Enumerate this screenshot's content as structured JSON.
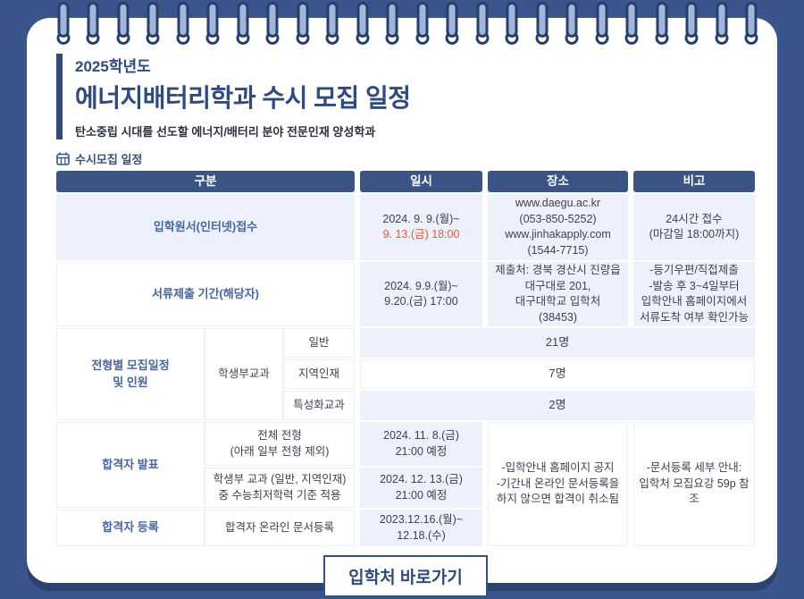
{
  "colors": {
    "page_bg": "#3a548c",
    "card_shadow": "#2b4270",
    "table_header_bg": "#3a5486",
    "row_tint": "#edf1fb",
    "navy_text": "#2e4a80",
    "blue_label": "#4466a8",
    "red_text": "#f6552f"
  },
  "decoration": {
    "binding_ring_count": 24
  },
  "header": {
    "year_badge": "2025학년도",
    "title": "에너지배터리학과 수시 모집 일정",
    "subtitle": "탄소중립 시대를 선도할 에너지/배터리 분야 전문인재 양성학과"
  },
  "section": {
    "label": "수시모집 일정"
  },
  "table": {
    "headers": [
      "구분",
      "일시",
      "장소",
      "비고"
    ],
    "r1": {
      "label": "입학원서(인터넷)접수",
      "time1": "2024. 9. 9.(월)~",
      "time2": "9. 13.(금) 18:00",
      "place": [
        "www.daegu.ac.kr",
        "(053-850-5252)",
        "www.jinhakapply.com",
        "(1544-7715)"
      ],
      "note": [
        "24시간 접수",
        "(마감일 18:00까지)"
      ]
    },
    "r2": {
      "label": "서류제출 기간(해당자)",
      "time": [
        "2024. 9.9.(월)~",
        "9.20.(금) 17:00"
      ],
      "place": [
        "제출처: 경북 경산시 진량읍",
        "대구대로 201,",
        "대구대학교 입학처",
        "(38453)"
      ],
      "note": [
        "-등기우편/직접제출",
        "-발송 후 3~4일부터",
        "입학안내 홈페이지에서",
        "서류도착 여부 확인가능"
      ]
    },
    "quota": {
      "label": [
        "전형별 모집일정",
        "및 인원"
      ],
      "track": "학생부교과",
      "rows": [
        {
          "type": "일반",
          "count": "21명"
        },
        {
          "type": "지역인재",
          "count": "7명"
        },
        {
          "type": "특성화교과",
          "count": "2명"
        }
      ]
    },
    "results": {
      "label": "합격자 발표",
      "all": [
        "전체 전형",
        "(아래 일부 전형 제외)"
      ],
      "all_time": [
        "2024. 11. 8.(금)",
        "21:00 예정"
      ],
      "csat": [
        "학생부 교과 (일반, 지역인재)",
        "중 수능최저학력 기준 적용"
      ],
      "csat_time": [
        "2024. 12. 13.(금)",
        "21:00 예정"
      ],
      "place": [
        "-입학안내 홈페이지 공지",
        "-기간내 온라인 문서등록을",
        "하지 않으면 합격이 취소됨"
      ],
      "note": [
        "-문서등록 세부 안내:",
        "입학처 모집요강 59p 참조"
      ]
    },
    "register": {
      "label": "합격자 등록",
      "method": "합격자 온라인 문서등록",
      "time": [
        "2023.12.16.(월)~",
        "12.18.(수)"
      ]
    }
  },
  "button": {
    "label": "입학처 바로가기"
  }
}
